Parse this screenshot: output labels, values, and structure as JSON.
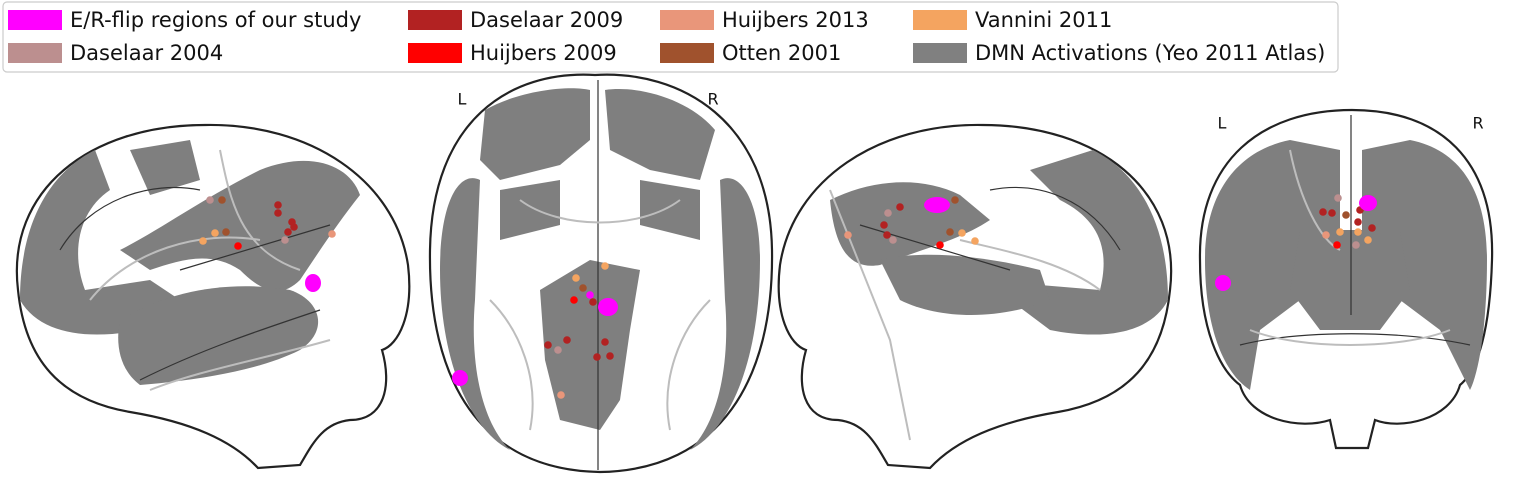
{
  "legend": [
    {
      "label": "E/R-flip regions of our study",
      "color": "#ff00ff"
    },
    {
      "label": "Daselaar 2004",
      "color": "#bc8f8f"
    },
    {
      "label": "Daselaar 2009",
      "color": "#b22222"
    },
    {
      "label": "Huijbers 2009",
      "color": "#ff0000"
    },
    {
      "label": "Huijbers 2013",
      "color": "#e9967a"
    },
    {
      "label": "Otten 2001",
      "color": "#a0522d"
    },
    {
      "label": "Vannini 2011",
      "color": "#f4a460"
    },
    {
      "label": "DMN Activations (Yeo 2011 Atlas)",
      "color": "#808080"
    }
  ],
  "orientation": {
    "axial": {
      "left": "L",
      "right": "R"
    },
    "coronal": {
      "left": "L",
      "right": "R"
    }
  }
}
